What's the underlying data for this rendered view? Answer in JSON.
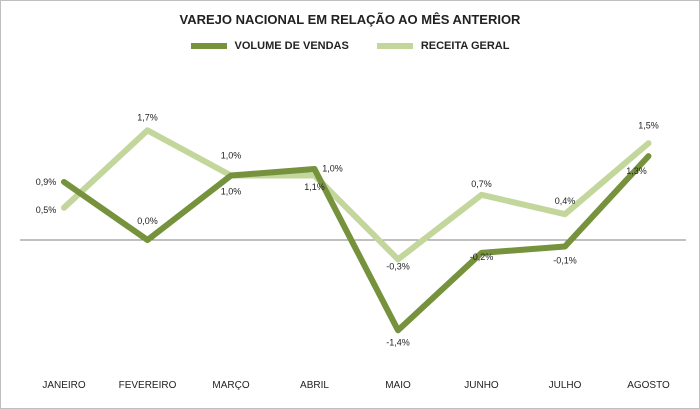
{
  "colors": {
    "volume": "#76923c",
    "receita": "#c3d69b",
    "zero_line": "#808080"
  },
  "chart_data": {
    "type": "line",
    "title": "VAREJO NACIONAL EM RELAÇÃO AO MÊS ANTERIOR",
    "categories": [
      "JANEIRO",
      "FEVEREIRO",
      "MARÇO",
      "ABRIL",
      "MAIO",
      "JUNHO",
      "JULHO",
      "AGOSTO"
    ],
    "series": [
      {
        "name": "VOLUME DE VENDAS",
        "values": [
          0.9,
          0.0,
          1.0,
          1.1,
          -1.4,
          -0.2,
          -0.1,
          1.3
        ],
        "labels": [
          "0,9%",
          "0,0%",
          "1,0%",
          "1,1%",
          "-1,4%",
          "-0,2%",
          "-0,1%",
          "1,3%"
        ]
      },
      {
        "name": "RECEITA GERAL",
        "values": [
          0.5,
          1.7,
          1.0,
          1.0,
          -0.3,
          0.7,
          0.4,
          1.5
        ],
        "labels": [
          "0,5%",
          "1,7%",
          "1,0%",
          "1,0%",
          "-0,3%",
          "0,7%",
          "0,4%",
          "1,5%"
        ]
      }
    ],
    "legend_position": "top",
    "grid": false
  }
}
